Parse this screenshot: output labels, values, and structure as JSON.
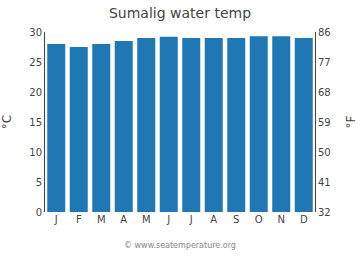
{
  "chart_data": {
    "type": "bar",
    "title": "Sumalig water temp",
    "categories": [
      "J",
      "F",
      "M",
      "A",
      "M",
      "J",
      "J",
      "A",
      "S",
      "O",
      "N",
      "D"
    ],
    "values": [
      28.0,
      27.5,
      28.0,
      28.5,
      29.0,
      29.2,
      29.0,
      29.0,
      29.0,
      29.3,
      29.3,
      29.0
    ],
    "ylabel": "°C",
    "ylim": [
      0,
      30
    ],
    "yticks": [
      0,
      5,
      10,
      15,
      20,
      25,
      30
    ],
    "y2label": "°F",
    "y2lim": [
      32,
      86
    ],
    "y2ticks": [
      32,
      41,
      50,
      59,
      68,
      77,
      86
    ],
    "grid": false,
    "annotations": [
      {
        "text": "© www.seatemperature.org"
      }
    ]
  }
}
